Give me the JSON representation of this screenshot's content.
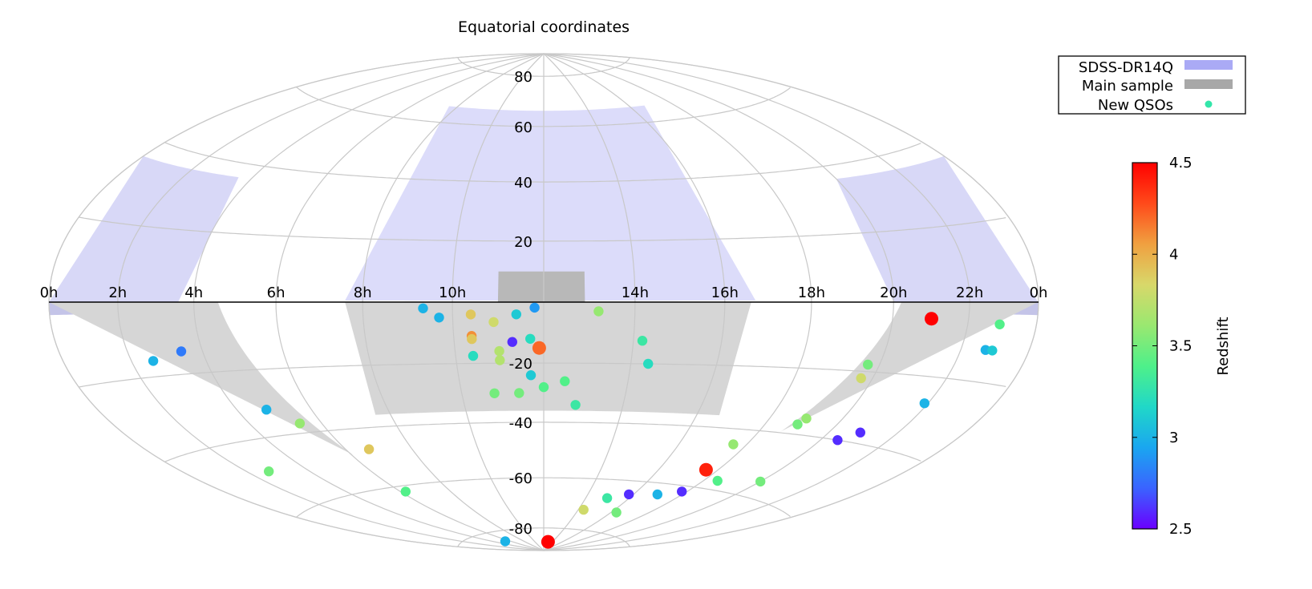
{
  "chart_data": {
    "type": "scatter",
    "projection": "hammer-aitoff",
    "title": "Equatorial coordinates",
    "ra_tick_labels": [
      "0h",
      "22h",
      "20h",
      "18h",
      "16h",
      "14h",
      "",
      "10h",
      "8h",
      "6h",
      "4h",
      "2h",
      "0h"
    ],
    "dec_tick_labels": [
      "80",
      "60",
      "40",
      "20",
      "-20",
      "-40",
      "-60",
      "-80"
    ],
    "dec_tick_values": [
      80,
      60,
      40,
      20,
      -20,
      -40,
      -60,
      -80
    ],
    "legend": {
      "placement": "top-right",
      "entries": [
        {
          "label": "SDSS-DR14Q",
          "color": "#aaaaf5"
        },
        {
          "label": "Main sample",
          "color": "#a8a8a8"
        },
        {
          "label": "New QSOs",
          "color": "#33e6aa"
        }
      ]
    },
    "colorbar": {
      "label": "Redshift",
      "range": [
        2.5,
        4.5
      ],
      "tick_labels": [
        "2.5",
        "3",
        "3.5",
        "4",
        "4.5"
      ],
      "tick_values": [
        2.5,
        3,
        3.5,
        4,
        4.5
      ],
      "colormap": [
        "#6a00ff",
        "#3a63ff",
        "#1aa6f0",
        "#20d8c8",
        "#4ef08a",
        "#9ae870",
        "#d8d86a",
        "#f0a040",
        "#ff4a1a",
        "#ff0000"
      ]
    },
    "series": [
      {
        "name": "New QSOs",
        "ra_dec_z": [
          [
            21.0,
            -4.5,
            4.5
          ],
          [
            22.9,
            -5.5,
            3.4
          ],
          [
            19.7,
            -22,
            3.8
          ],
          [
            19.7,
            -18,
            3.5
          ],
          [
            22.7,
            -12,
            3.0
          ],
          [
            22.9,
            -12,
            3.1
          ],
          [
            21.9,
            -27,
            3.0
          ],
          [
            20.9,
            -37,
            2.6
          ],
          [
            20.5,
            -40,
            2.6
          ],
          [
            19.0,
            -35,
            3.6
          ],
          [
            18.9,
            -37,
            3.5
          ],
          [
            17.6,
            -45,
            3.6
          ],
          [
            17.6,
            -54,
            4.4
          ],
          [
            20.0,
            -55,
            3.5
          ],
          [
            18.5,
            -57,
            3.4
          ],
          [
            17.8,
            -62,
            2.6
          ],
          [
            17.0,
            -64,
            3.0
          ],
          [
            15.8,
            -65,
            2.6
          ],
          [
            15.0,
            -67,
            3.3
          ],
          [
            14.3,
            -72,
            3.8
          ],
          [
            16.3,
            -72,
            3.5
          ],
          [
            13.0,
            -86,
            4.5
          ],
          [
            13.2,
            -3,
            3.6
          ],
          [
            14.2,
            -12.5,
            3.3
          ],
          [
            14.4,
            -20,
            3.2
          ],
          [
            11.8,
            -1.8,
            2.9
          ],
          [
            11.4,
            -4,
            3.1
          ],
          [
            10.9,
            -6.5,
            3.8
          ],
          [
            10.4,
            -4,
            3.9
          ],
          [
            10.4,
            -11,
            4.1
          ],
          [
            10.4,
            -12,
            3.9
          ],
          [
            11.7,
            -12,
            3.2
          ],
          [
            11.3,
            -13,
            2.6
          ],
          [
            11.9,
            -15,
            4.2
          ],
          [
            11.0,
            -16,
            3.7
          ],
          [
            11.0,
            -19,
            3.7
          ],
          [
            10.4,
            -17.5,
            3.2
          ],
          [
            11.7,
            -24,
            3.1
          ],
          [
            12.5,
            -26,
            3.4
          ],
          [
            12.0,
            -28,
            3.4
          ],
          [
            11.4,
            -30,
            3.5
          ],
          [
            10.8,
            -30,
            3.5
          ],
          [
            12.8,
            -34,
            3.3
          ],
          [
            9.35,
            -2,
            3.0
          ],
          [
            9.7,
            -5,
            3.0
          ],
          [
            3.45,
            -13.7,
            2.8
          ],
          [
            2.6,
            -15.8,
            3.0
          ],
          [
            4.8,
            -32,
            3.0
          ],
          [
            5.4,
            -37,
            3.6
          ],
          [
            6.7,
            -47,
            3.9
          ],
          [
            2.7,
            -49,
            3.5
          ],
          [
            6.2,
            -62,
            3.4
          ],
          [
            5.3,
            -84,
            3.0
          ]
        ]
      }
    ]
  }
}
